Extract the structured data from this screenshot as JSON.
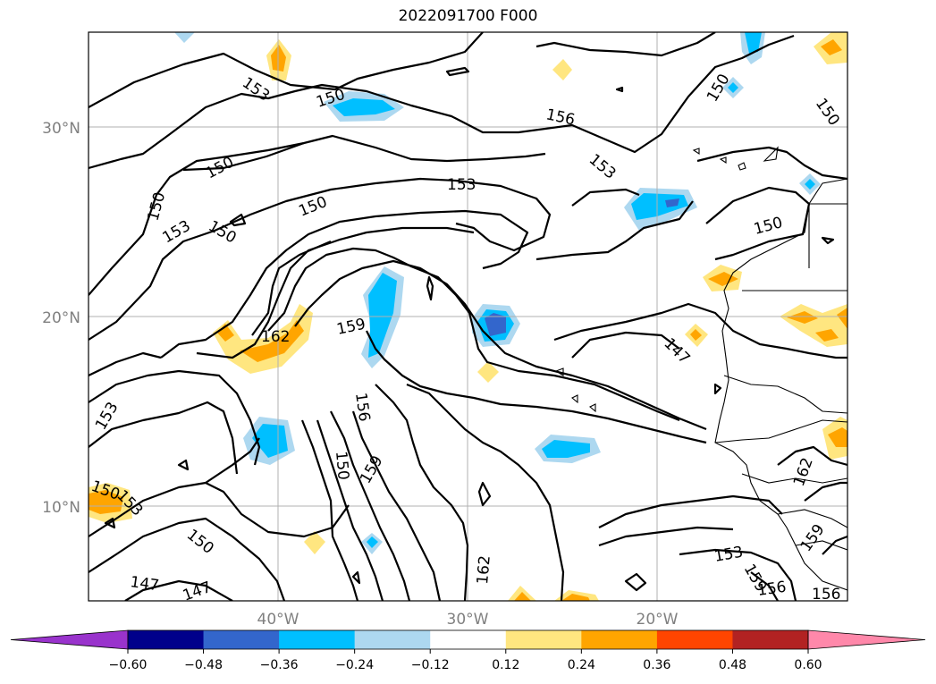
{
  "title": "2022091700 F000",
  "latitude_labels": [
    "30°N",
    "20°N",
    "10°N"
  ],
  "longitude_labels": [
    "40°W",
    "30°W",
    "20°W"
  ],
  "contour_labels": [
    "153",
    "150",
    "150",
    "150",
    "150",
    "153",
    "150",
    "153",
    "156",
    "153",
    "150",
    "162",
    "159",
    "156",
    "150",
    "159",
    "147",
    "162",
    "153",
    "150",
    "153",
    "150",
    "147",
    "147",
    "153",
    "159",
    "156",
    "156",
    "159",
    "162",
    "150",
    "150"
  ],
  "colorbar": {
    "ticks": [
      "−0.60",
      "−0.48",
      "−0.36",
      "−0.24",
      "−0.12",
      "0.12",
      "0.24",
      "0.36",
      "0.48",
      "0.60"
    ],
    "colors": [
      "#9933cc",
      "#00008b",
      "#3366cc",
      "#00bfff",
      "#add8f0",
      "#ffffff",
      "#ffe680",
      "#ffa500",
      "#ff4500",
      "#b22222",
      "#ff88aa"
    ]
  },
  "shading_colors": {
    "light_blue": "#add8f0",
    "blue": "#00bfff",
    "dark_blue": "#3366cc",
    "light_orange": "#ffe680",
    "orange": "#ffa500"
  }
}
